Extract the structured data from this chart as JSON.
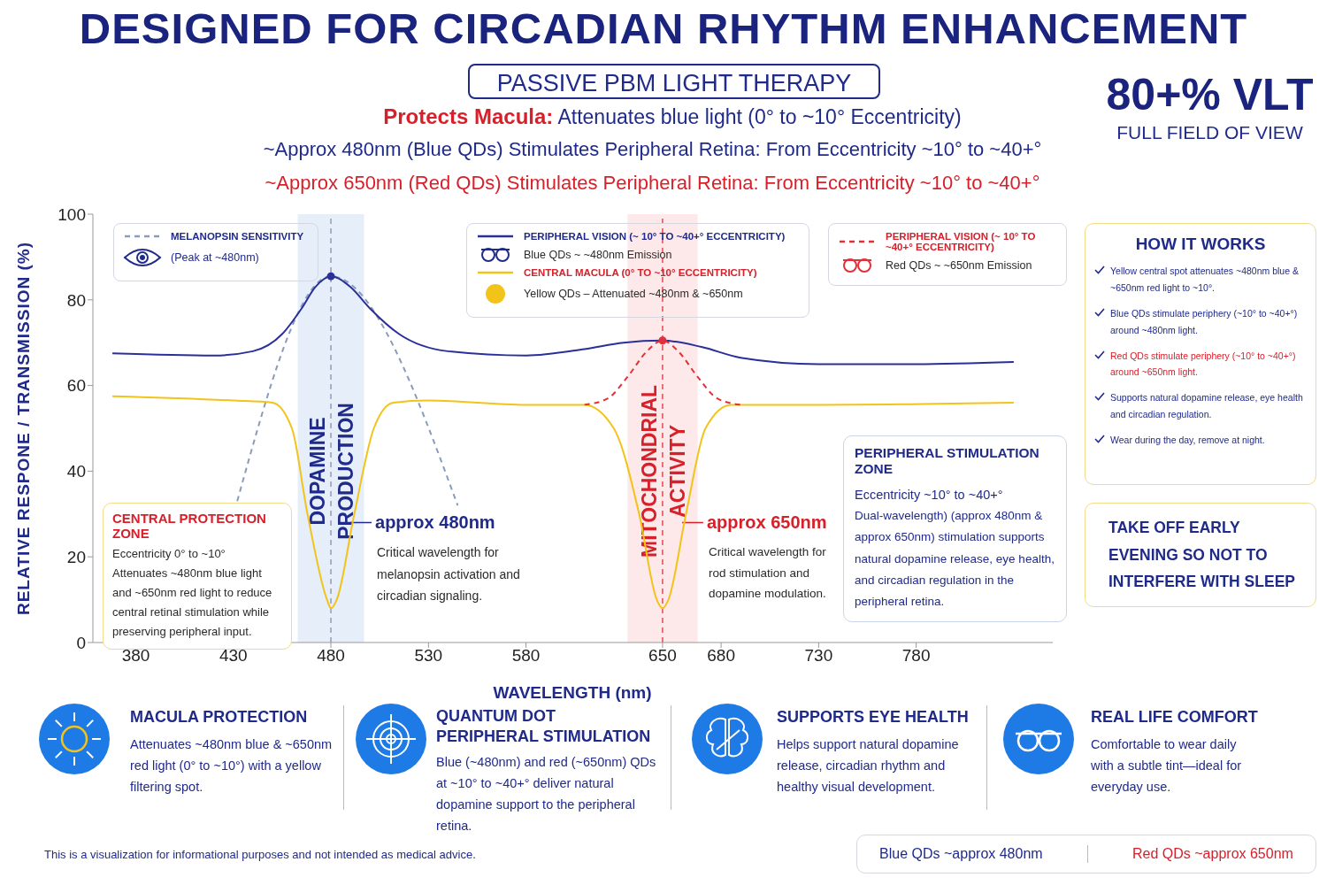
{
  "chart_data": {
    "type": "line",
    "title": "DESIGNED FOR CIRCADIAN RHYTHM ENHANCEMENT",
    "subtitle": "PASSIVE PBM LIGHT THERAPY",
    "xlabel": "WAVELENGTH (nm)",
    "ylabel": "RELATIVE RESPONE / TRANSMISSION (%)",
    "xlim": [
      358,
      850
    ],
    "xticks": [
      380,
      430,
      480,
      530,
      580,
      650,
      680,
      730,
      780
    ],
    "ylim": [
      0,
      100
    ],
    "yticks": [
      0,
      20,
      40,
      60,
      80,
      100
    ],
    "legend": "top",
    "marker": "none",
    "line_style": "solid",
    "series": [
      {
        "name": "MELANOPSIN SENSITIVITY",
        "color": "#8a9cbc",
        "line_style": "dashed",
        "x": [
          432,
          480,
          545
        ],
        "values": [
          33,
          85.5,
          32
        ]
      },
      {
        "name": "PERIPHERAL VISION (~ 10° TO ~40+° ECCENTRICITY)",
        "color": "#2a2f9a",
        "x": [
          368,
          420,
          440,
          455,
          465,
          472,
          480,
          490,
          500,
          515,
          540,
          580,
          610,
          630,
          650,
          670,
          690,
          730,
          780,
          830
        ],
        "values": [
          67.5,
          67,
          68,
          72,
          78,
          83,
          85.5,
          83,
          78,
          72,
          68,
          67,
          68.5,
          70,
          70.5,
          69,
          66.5,
          65,
          65,
          65.5
        ]
      },
      {
        "name": "CENTRAL MACULA (0° TO ~10° ECCENTRICITY)",
        "color": "#f2c318",
        "x": [
          368,
          430,
          450,
          460,
          468,
          478,
          480,
          483,
          492,
          502,
          512,
          530,
          580,
          610,
          625,
          638,
          647,
          650,
          653,
          662,
          672,
          685,
          730,
          830
        ],
        "values": [
          57.5,
          56.5,
          56,
          50,
          30,
          10,
          8,
          10,
          30,
          50,
          56,
          56.5,
          55.5,
          55.5,
          50,
          30,
          10,
          8,
          10,
          30,
          50,
          55.5,
          55.5,
          56
        ]
      },
      {
        "name": "PERIPHERAL VISION (~ 10° TO ~40+° ECCENTRICITY)",
        "color": "#e0303a",
        "line_style": "dashed",
        "x": [
          610,
          622,
          632,
          642,
          650,
          658,
          668,
          678,
          690
        ],
        "values": [
          55.5,
          57,
          62,
          68,
          70.5,
          68,
          62,
          57,
          55.5
        ]
      },
      {
        "type": "scatter",
        "color": "#2a2f9a",
        "marker": "circle",
        "x": [
          480
        ],
        "values": [
          85.5
        ]
      },
      {
        "type": "scatter",
        "color": "#e0303a",
        "marker": "circle",
        "x": [
          650
        ],
        "values": [
          70.5
        ]
      }
    ],
    "bands": [
      {
        "axis": "x",
        "from": 463,
        "to": 497,
        "label": "DOPAMINE PRODUCTION",
        "color": "#dfeaf8"
      },
      {
        "axis": "x",
        "from": 632,
        "to": 668,
        "label": "MITOCHONDRIAL ACTIVITY",
        "color": "#fde4e4"
      }
    ],
    "ref_lines": [
      {
        "axis": "x",
        "value": 480,
        "label": "approx 480nm",
        "color": "#8a8fa8",
        "line_style": "dashed"
      },
      {
        "axis": "x",
        "value": 650,
        "label": "approx 650nm",
        "color": "#e0303a",
        "line_style": "dashed"
      }
    ],
    "annotations": [
      "Protects Macula:",
      "Attenuates blue light (0° to ~10° Eccentricity)",
      "~Approx 480nm (Blue QDs) Stimulates Peripheral Retina: From Eccentricity ~10° to ~40+°",
      "~Approx 650nm (Red QDs) Stimulates Peripheral Retina: From Eccentricity ~10° to ~40+°",
      "80+% VLT",
      "FULL FIELD OF VIEW",
      "(Peak at ~480nm)",
      "Blue QDs ~ ~480nm Emission",
      "Yellow QDs – Attenuated ~480nm & ~650nm",
      "Red QDs ~ ~650nm Emission",
      "CENTRAL PROTECTION ZONE",
      "Eccentricity 0° to ~10° Attenuates ~480nm blue light and ~650nm red light to reduce central retinal stimulation while preserving peripheral input.",
      "Critical wavelength for melanopsin activation and circadian signaling.",
      "Critical wavelength for rod stimulation and dopamine modulation.",
      "PERIPHERAL STIMULATION ZONE",
      "Eccentricity ~10° to ~40+°",
      "Dual-wavelength) (approx 480nm & approx 650nm) stimulation supports natural dopamine release, eye health, and circadian regulation in the peripheral retina.",
      "HOW IT WORKS",
      "Yellow central spot attenuates ~480nm blue & ~650nm red light to ~10°.",
      "Blue QDs stimulate periphery (~10° to ~40+°) around ~480nm light.",
      "Red QDs stimulate periphery (~10° to ~40+°) around ~650nm light.",
      "Supports natural dopamine release, eye health and circadian regulation.",
      "Wear during the day, remove at night.",
      "TAKE OFF EARLY EVENING SO NOT TO INTERFERE WITH SLEEP",
      "MACULA PROTECTION",
      "Attenuates ~480nm blue & ~650nm red light (0° to ~10°) with a yellow filtering spot.",
      "QUANTUM DOT PERIPHERAL STIMULATION",
      "Blue (~480nm) and red (~650nm) QDs at ~10° to ~40+° deliver natural dopamine support to the peripheral retina.",
      "SUPPORTS EYE HEALTH",
      "Helps support natural dopamine release, circadian rhythm and healthy visual development.",
      "REAL LIFE COMFORT",
      "Comfortable to wear daily with a subtle tint—ideal for everyday use.",
      "This is a visualization for informational purposes and not intended as medical advice.",
      "Blue QDs ~approx 480nm",
      "Red QDs ~approx 650nm"
    ]
  }
}
